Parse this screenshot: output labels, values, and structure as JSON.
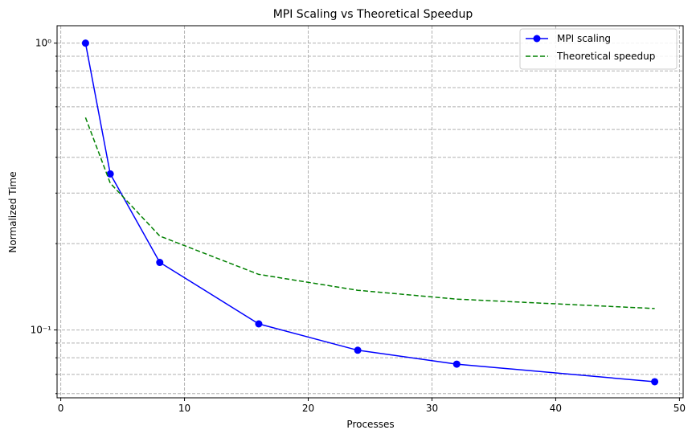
{
  "chart_data": {
    "type": "line",
    "title": "MPI Scaling vs Theoretical Speedup",
    "xlabel": "Processes",
    "ylabel": "Normalized Time",
    "xlim": [
      -0.3,
      50.3
    ],
    "ylim": [
      0.058,
      1.15
    ],
    "yscale": "log",
    "grid": true,
    "legend_position": "top-right",
    "x_ticks": [
      0,
      10,
      20,
      30,
      40,
      50
    ],
    "x_tick_labels": [
      "0",
      "10",
      "20",
      "30",
      "40",
      "50"
    ],
    "y_major_ticks": [
      0.1,
      1.0
    ],
    "y_major_tick_labels": [
      "10⁻¹",
      "10⁰"
    ],
    "y_minor_ticks": [
      0.06,
      0.07,
      0.08,
      0.09,
      0.2,
      0.3,
      0.4,
      0.5,
      0.6,
      0.7,
      0.8,
      0.9
    ],
    "series": [
      {
        "name": "MPI scaling",
        "color": "#0000ff",
        "style": "solid",
        "marker": "circle",
        "x": [
          2,
          4,
          8,
          16,
          24,
          32,
          48
        ],
        "y": [
          1.0,
          0.35,
          0.172,
          0.105,
          0.085,
          0.076,
          0.066
        ]
      },
      {
        "name": "Theoretical speedup",
        "color": "#008000",
        "style": "dashed",
        "marker": "none",
        "x": [
          2,
          4,
          8,
          16,
          24,
          32,
          48
        ],
        "y": [
          0.55,
          0.325,
          0.2125,
          0.15625,
          0.1375,
          0.1281,
          0.1188
        ]
      }
    ]
  }
}
